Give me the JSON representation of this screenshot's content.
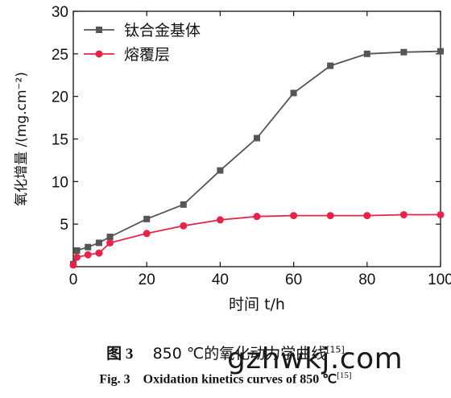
{
  "chart_data": {
    "type": "line",
    "xlabel": "时间 t/h",
    "ylabel": "氧化增量 /(mg.cm⁻²)",
    "xlim": [
      0,
      100
    ],
    "ylim": [
      0,
      30
    ],
    "xticks": [
      0,
      20,
      40,
      60,
      80,
      100
    ],
    "yticks": [
      5,
      10,
      15,
      20,
      25,
      30
    ],
    "legend_position": "top-left",
    "grid": false,
    "series": [
      {
        "name": "钛合金基体",
        "color": "#555555",
        "marker": "square",
        "x": [
          0,
          1,
          4,
          7,
          10,
          20,
          30,
          40,
          50,
          60,
          70,
          80,
          90,
          100
        ],
        "y": [
          0.3,
          1.9,
          2.3,
          2.8,
          3.5,
          5.6,
          7.3,
          11.3,
          15.1,
          20.4,
          23.6,
          25.0,
          25.2,
          25.3
        ]
      },
      {
        "name": "熔覆层",
        "color": "#e8234a",
        "marker": "circle",
        "x": [
          0,
          1,
          4,
          7,
          10,
          20,
          30,
          40,
          50,
          60,
          70,
          80,
          90,
          100
        ],
        "y": [
          0.2,
          1.1,
          1.4,
          1.6,
          2.8,
          3.9,
          4.8,
          5.5,
          5.9,
          6.0,
          6.0,
          6.0,
          6.1,
          6.1
        ]
      }
    ]
  },
  "caption": {
    "cn_fig": "图 3",
    "cn_text": "850 ℃的氧化动力学曲线",
    "en_fig": "Fig. 3",
    "en_text": "Oxidation kinetics curves of 850 ℃",
    "ref": "[15]"
  },
  "watermark": "gzhwkj.com"
}
